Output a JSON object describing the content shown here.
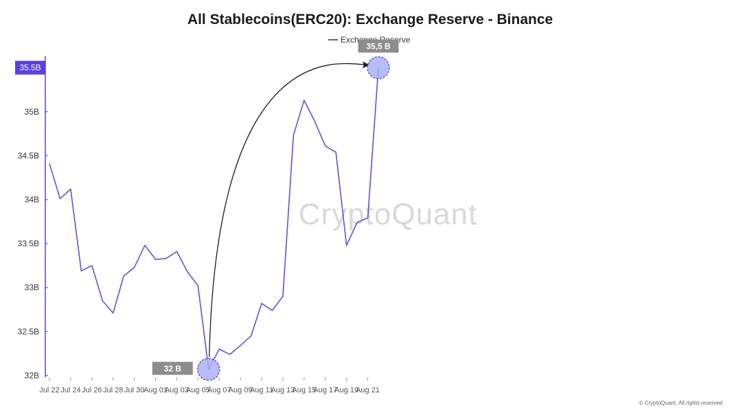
{
  "chart_data": {
    "type": "line",
    "title": "All Stablecoins(ERC20): Exchange Reserve - Binance",
    "legend": "Exchange Reserve",
    "series": [
      {
        "name": "Exchange Reserve",
        "values": [
          34.41,
          34.01,
          34.12,
          33.19,
          33.25,
          32.85,
          32.71,
          33.13,
          33.23,
          33.48,
          33.32,
          33.33,
          33.41,
          33.18,
          33.02,
          32.07,
          32.3,
          32.24,
          32.34,
          32.45,
          32.82,
          32.74,
          32.9,
          34.73,
          35.13,
          34.89,
          34.61,
          34.54,
          33.48,
          33.74,
          33.79,
          35.5
        ]
      }
    ],
    "x_tick_labels": [
      "Jul 22",
      "Jul 24",
      "Jul 26",
      "Jul 28",
      "Jul 30",
      "Aug 01",
      "Aug 03",
      "Aug 05",
      "Aug 07",
      "Aug 09",
      "Aug 11",
      "Aug 13",
      "Aug 15",
      "Aug 17",
      "Aug 19",
      "Aug 21"
    ],
    "y_ticks": [
      32,
      32.5,
      33,
      33.5,
      34,
      34.5,
      35
    ],
    "y_tick_labels": [
      "32B",
      "32.5B",
      "33B",
      "33.5B",
      "34B",
      "34.5B",
      "35B"
    ],
    "ylim": [
      31.98,
      35.63
    ],
    "last_value_label": "35.5B",
    "annotations": {
      "low": {
        "label": "32 B",
        "index": 15,
        "value": 32.07
      },
      "high": {
        "label": "35,5 B",
        "index": 31,
        "value": 35.5
      }
    },
    "watermark": "CryptoQuant",
    "copyright": "© CryptoQuant. All rights reserved",
    "colors": {
      "line": "#5b55d6",
      "accent": "#5b3fe0",
      "marker": "#a8b0f5",
      "callout": "#8c8c8c"
    },
    "grid": false
  }
}
